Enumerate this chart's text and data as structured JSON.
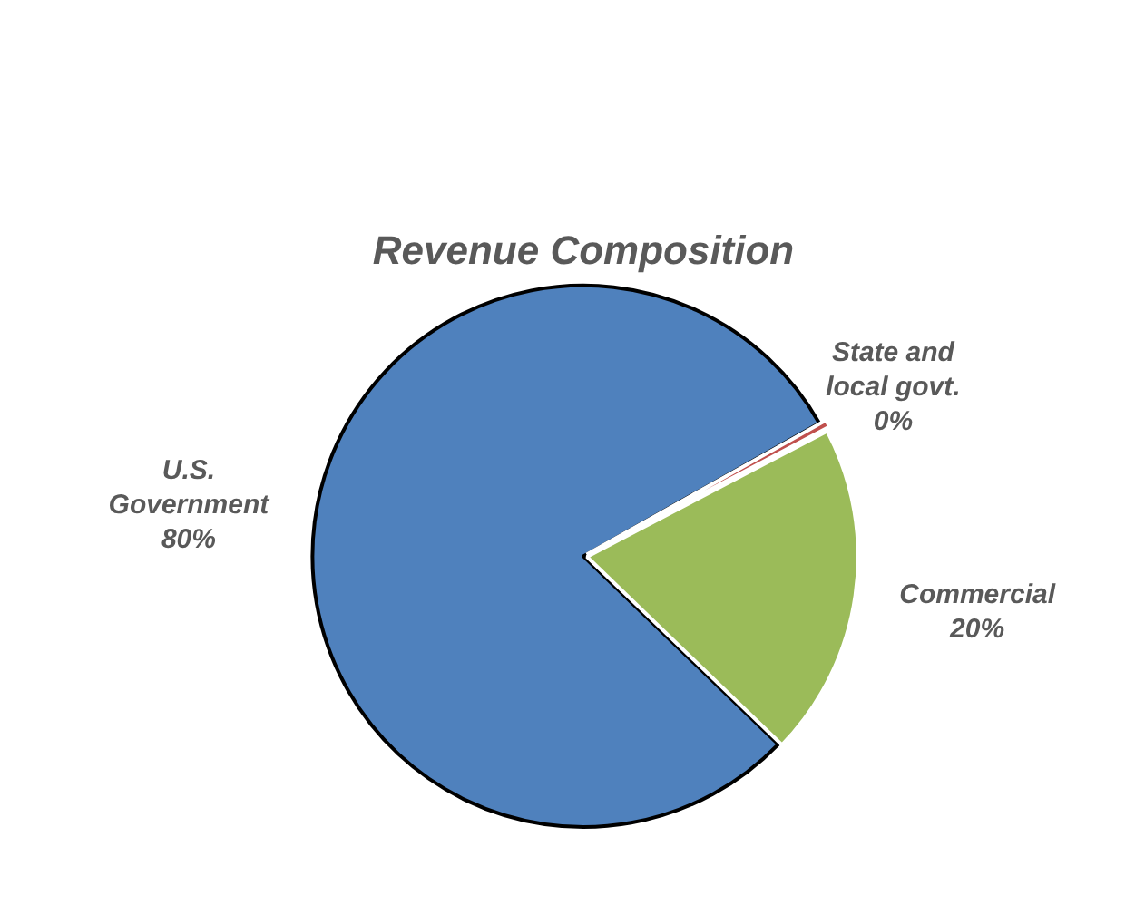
{
  "chart_data": {
    "type": "pie",
    "title": "Revenue Composition",
    "categories": [
      "U.S. Government",
      "State and local govt.",
      "Commercial"
    ],
    "values": [
      80,
      0.5,
      20
    ],
    "value_labels": [
      "80%",
      "0%",
      "20%"
    ],
    "colors": [
      "#4f81bd",
      "#c0504d",
      "#9bbb59"
    ]
  }
}
